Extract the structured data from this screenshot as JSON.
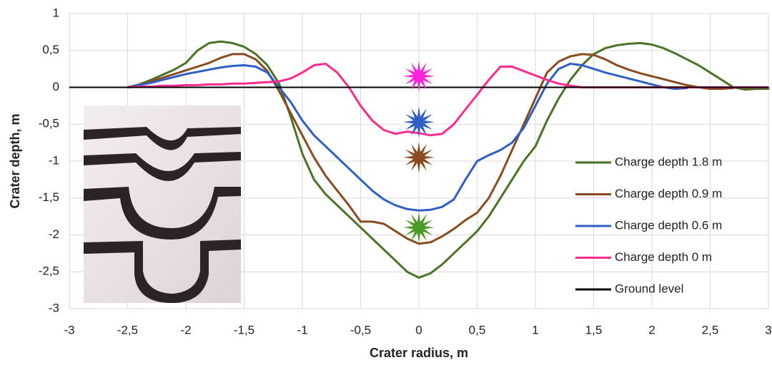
{
  "chart_data": {
    "type": "line",
    "x_label": "Crater radius, m",
    "y_label": "Crater depth, m",
    "x": [
      -2.5,
      -2.4,
      -2.3,
      -2.2,
      -2.1,
      -2.0,
      -1.9,
      -1.8,
      -1.7,
      -1.6,
      -1.5,
      -1.4,
      -1.3,
      -1.2,
      -1.1,
      -1.0,
      -0.9,
      -0.8,
      -0.7,
      -0.6,
      -0.5,
      -0.4,
      -0.3,
      -0.2,
      -0.1,
      0,
      0.1,
      0.2,
      0.3,
      0.4,
      0.5,
      0.6,
      0.7,
      0.8,
      0.9,
      1.0,
      1.1,
      1.2,
      1.3,
      1.4,
      1.5,
      1.6,
      1.7,
      1.8,
      1.9,
      2.0,
      2.1,
      2.2,
      2.3,
      2.4,
      2.5,
      2.6,
      2.7,
      2.8,
      2.9,
      3.0
    ],
    "series": [
      {
        "name": "Charge depth 1.8 m",
        "color": "#4a7326",
        "values": [
          0,
          0.04,
          0.1,
          0.17,
          0.24,
          0.33,
          0.5,
          0.6,
          0.62,
          0.6,
          0.55,
          0.45,
          0.3,
          0.05,
          -0.4,
          -0.9,
          -1.25,
          -1.45,
          -1.6,
          -1.75,
          -1.9,
          -2.05,
          -2.2,
          -2.35,
          -2.5,
          -2.58,
          -2.52,
          -2.4,
          -2.25,
          -2.1,
          -1.95,
          -1.75,
          -1.5,
          -1.25,
          -1.0,
          -0.8,
          -0.45,
          -0.15,
          0.1,
          0.3,
          0.45,
          0.53,
          0.57,
          0.59,
          0.6,
          0.58,
          0.53,
          0.46,
          0.38,
          0.3,
          0.2,
          0.1,
          0.0,
          -0.03,
          -0.02,
          -0.02
        ]
      },
      {
        "name": "Charge depth 0.9 m",
        "color": "#8a4b1f",
        "values": [
          0,
          0.03,
          0.08,
          0.13,
          0.18,
          0.23,
          0.28,
          0.33,
          0.4,
          0.45,
          0.45,
          0.38,
          0.22,
          -0.05,
          -0.35,
          -0.65,
          -0.95,
          -1.2,
          -1.4,
          -1.6,
          -1.82,
          -1.82,
          -1.85,
          -1.95,
          -2.05,
          -2.12,
          -2.1,
          -2.02,
          -1.92,
          -1.8,
          -1.7,
          -1.5,
          -1.2,
          -0.85,
          -0.5,
          -0.15,
          0.2,
          0.35,
          0.42,
          0.45,
          0.44,
          0.38,
          0.3,
          0.24,
          0.19,
          0.15,
          0.11,
          0.07,
          0.03,
          0.0,
          -0.02,
          -0.02,
          -0.01,
          null,
          null,
          null
        ]
      },
      {
        "name": "Charge depth 0.6 m",
        "color": "#2f5fc4",
        "values": [
          0,
          0.03,
          0.06,
          0.1,
          0.14,
          0.18,
          0.21,
          0.24,
          0.27,
          0.29,
          0.3,
          0.28,
          0.2,
          0.0,
          -0.2,
          -0.45,
          -0.65,
          -0.8,
          -0.95,
          -1.1,
          -1.25,
          -1.4,
          -1.52,
          -1.6,
          -1.65,
          -1.67,
          -1.66,
          -1.62,
          -1.52,
          -1.25,
          -1.0,
          -0.92,
          -0.85,
          -0.75,
          -0.55,
          -0.25,
          0.05,
          0.25,
          0.32,
          0.3,
          0.25,
          0.2,
          0.16,
          0.12,
          0.08,
          0.04,
          0.0,
          -0.02,
          -0.01,
          null,
          null,
          null,
          null,
          null,
          null,
          null
        ]
      },
      {
        "name": "Charge depth 0 m",
        "color": "#ff2a8f",
        "values": [
          0,
          0.01,
          0.01,
          0.02,
          0.02,
          0.03,
          0.03,
          0.04,
          0.04,
          0.05,
          0.05,
          0.06,
          0.07,
          0.08,
          0.12,
          0.2,
          0.3,
          0.32,
          0.2,
          0.0,
          -0.25,
          -0.45,
          -0.58,
          -0.63,
          -0.6,
          -0.62,
          -0.65,
          -0.63,
          -0.5,
          -0.3,
          -0.1,
          0.1,
          0.28,
          0.28,
          0.22,
          0.16,
          0.1,
          0.05,
          0.02,
          0.0,
          0,
          0,
          0,
          0,
          0,
          0,
          0,
          0,
          0,
          0,
          0,
          0,
          0,
          0,
          0,
          0
        ]
      }
    ],
    "reference_line": {
      "name": "Ground level",
      "value": 0,
      "color": "#000000"
    },
    "markers": [
      {
        "x": 0,
        "y": 0.15,
        "color": "#ff22dd"
      },
      {
        "x": 0,
        "y": -0.47,
        "color": "#2f5fc4"
      },
      {
        "x": 0,
        "y": -0.95,
        "color": "#8a4b1f"
      },
      {
        "x": 0,
        "y": -1.9,
        "color": "#4a9a26"
      }
    ],
    "xlim": [
      -3,
      3
    ],
    "ylim": [
      -3,
      1
    ],
    "xticks": [
      -3,
      {
        "value": -2.5,
        "label": "-2,5"
      },
      -2,
      {
        "value": -1.5,
        "label": "-1,5"
      },
      -1,
      {
        "value": -0.5,
        "label": "-0,5"
      },
      0,
      {
        "value": 0.5,
        "label": "0,5"
      },
      1,
      {
        "value": 1.5,
        "label": "1,5"
      },
      2,
      {
        "value": 2.5,
        "label": "2,5"
      },
      3
    ],
    "yticks": [
      -3,
      {
        "value": -2.5,
        "label": "-2,5"
      },
      -2,
      {
        "value": -1.5,
        "label": "-1,5"
      },
      -1,
      {
        "value": -0.5,
        "label": "-0,5"
      },
      0,
      {
        "value": 0.5,
        "label": "0,5"
      },
      1
    ],
    "grid": true
  }
}
